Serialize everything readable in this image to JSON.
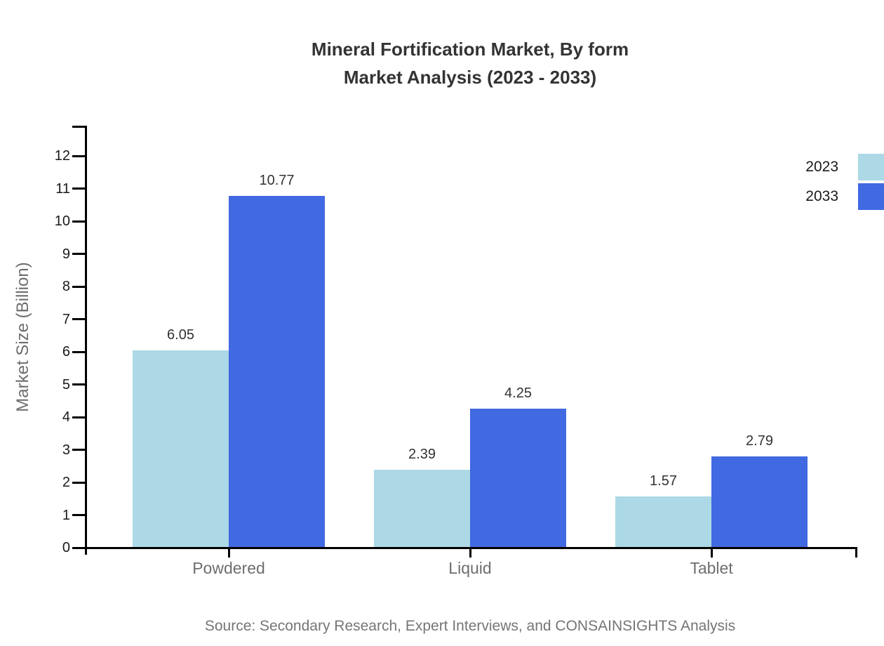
{
  "title": {
    "line1": "Mineral Fortification Market, By form",
    "line2": "Market Analysis (2023 - 2033)"
  },
  "source": "Source: Secondary Research, Expert Interviews, and CONSAINSIGHTS Analysis",
  "y_axis": {
    "label": "Market Size (Billion)"
  },
  "chart_data": {
    "type": "bar",
    "title": "Mineral Fortification Market, By form Market Analysis (2023 - 2033)",
    "categories": [
      "Powdered",
      "Liquid",
      "Tablet"
    ],
    "series": [
      {
        "name": "2023",
        "color": "#ADD8E6",
        "values": [
          6.05,
          2.39,
          1.57
        ]
      },
      {
        "name": "2033",
        "color": "#4169E1",
        "values": [
          10.77,
          4.25,
          2.79
        ]
      }
    ],
    "xlabel": "",
    "ylabel": "Market Size (Billion)",
    "ylim": [
      0,
      12
    ],
    "yticks": [
      0,
      1,
      2,
      3,
      4,
      5,
      6,
      7,
      8,
      9,
      10,
      11,
      12
    ],
    "grid": false,
    "legend_position": "top-right",
    "data_labels": true,
    "value_label_format": "0.00"
  }
}
